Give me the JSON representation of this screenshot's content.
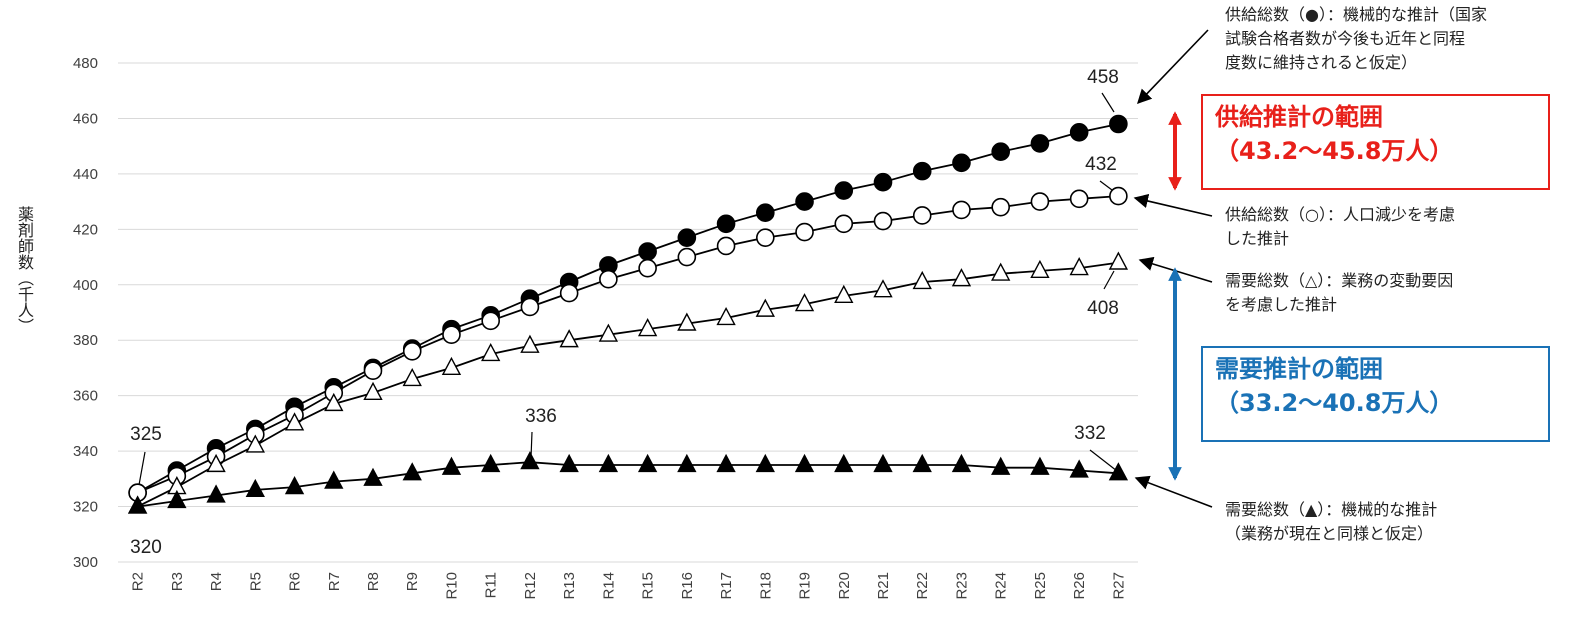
{
  "chart_data": {
    "type": "line",
    "ylabel": "薬剤師数（千人）",
    "ylim": [
      300,
      480
    ],
    "yticks": [
      300,
      320,
      340,
      360,
      380,
      400,
      420,
      440,
      460,
      480
    ],
    "categories": [
      "R2",
      "R3",
      "R4",
      "R5",
      "R6",
      "R7",
      "R8",
      "R9",
      "R10",
      "R11",
      "R12",
      "R13",
      "R14",
      "R15",
      "R16",
      "R17",
      "R18",
      "R19",
      "R20",
      "R21",
      "R22",
      "R23",
      "R24",
      "R25",
      "R26",
      "R27"
    ],
    "grid": "horizontal",
    "series": [
      {
        "key": "supply_filled",
        "name": "供給総数(●)",
        "marker": "filled-circle",
        "values": [
          325,
          333,
          341,
          348,
          356,
          363,
          370,
          377,
          384,
          389,
          395,
          401,
          407,
          412,
          417,
          422,
          426,
          430,
          434,
          437,
          441,
          444,
          448,
          451,
          455,
          458
        ]
      },
      {
        "key": "supply_open",
        "name": "供給総数(○)",
        "marker": "open-circle",
        "values": [
          325,
          331,
          338,
          346,
          353,
          361,
          369,
          376,
          382,
          387,
          392,
          397,
          402,
          406,
          410,
          414,
          417,
          419,
          422,
          423,
          425,
          427,
          428,
          430,
          431,
          432
        ]
      },
      {
        "key": "demand_open",
        "name": "需要総数(△)",
        "marker": "open-triangle",
        "values": [
          320,
          327,
          335,
          342,
          350,
          357,
          361,
          366,
          370,
          375,
          378,
          380,
          382,
          384,
          386,
          388,
          391,
          393,
          396,
          398,
          401,
          402,
          404,
          405,
          406,
          408
        ]
      },
      {
        "key": "demand_filled",
        "name": "需要総数(▲)",
        "marker": "filled-triangle",
        "values": [
          320,
          322,
          324,
          326,
          327,
          329,
          330,
          332,
          334,
          335,
          336,
          335,
          335,
          335,
          335,
          335,
          335,
          335,
          335,
          335,
          335,
          335,
          334,
          334,
          333,
          332
        ]
      }
    ],
    "data_labels": [
      {
        "id": "l325",
        "text": "325"
      },
      {
        "id": "l320",
        "text": "320"
      },
      {
        "id": "l336",
        "text": "336"
      },
      {
        "id": "l332",
        "text": "332"
      },
      {
        "id": "l458",
        "text": "458"
      },
      {
        "id": "l432",
        "text": "432"
      },
      {
        "id": "l408",
        "text": "408"
      }
    ]
  },
  "annotations": {
    "supply_filled_line1": "供給総数（●）：機械的な推計（国家",
    "supply_filled_line2": "試験合格者数が今後も近年と同程",
    "supply_filled_line3": "度数に維持されると仮定）",
    "supply_open_line1": "供給総数（○）：人口減少を考慮",
    "supply_open_line2": "した推計",
    "demand_open_line1": "需要総数（△）：業務の変動要因",
    "demand_open_line2": "を考慮した推計",
    "demand_filled_line1": "需要総数（▲）：機械的な推計",
    "demand_filled_line2": "（業務が現在と同様と仮定）"
  },
  "ranges": {
    "supply_title": "供給推計の範囲",
    "supply_value": "（43.2～45.8万人）",
    "demand_title": "需要推計の範囲",
    "demand_value": "（33.2～40.8万人）"
  },
  "colors": {
    "supply_accent": "#e8201a",
    "demand_accent": "#1a72b6",
    "grid": "#d9d9d9",
    "series": "#000000"
  }
}
